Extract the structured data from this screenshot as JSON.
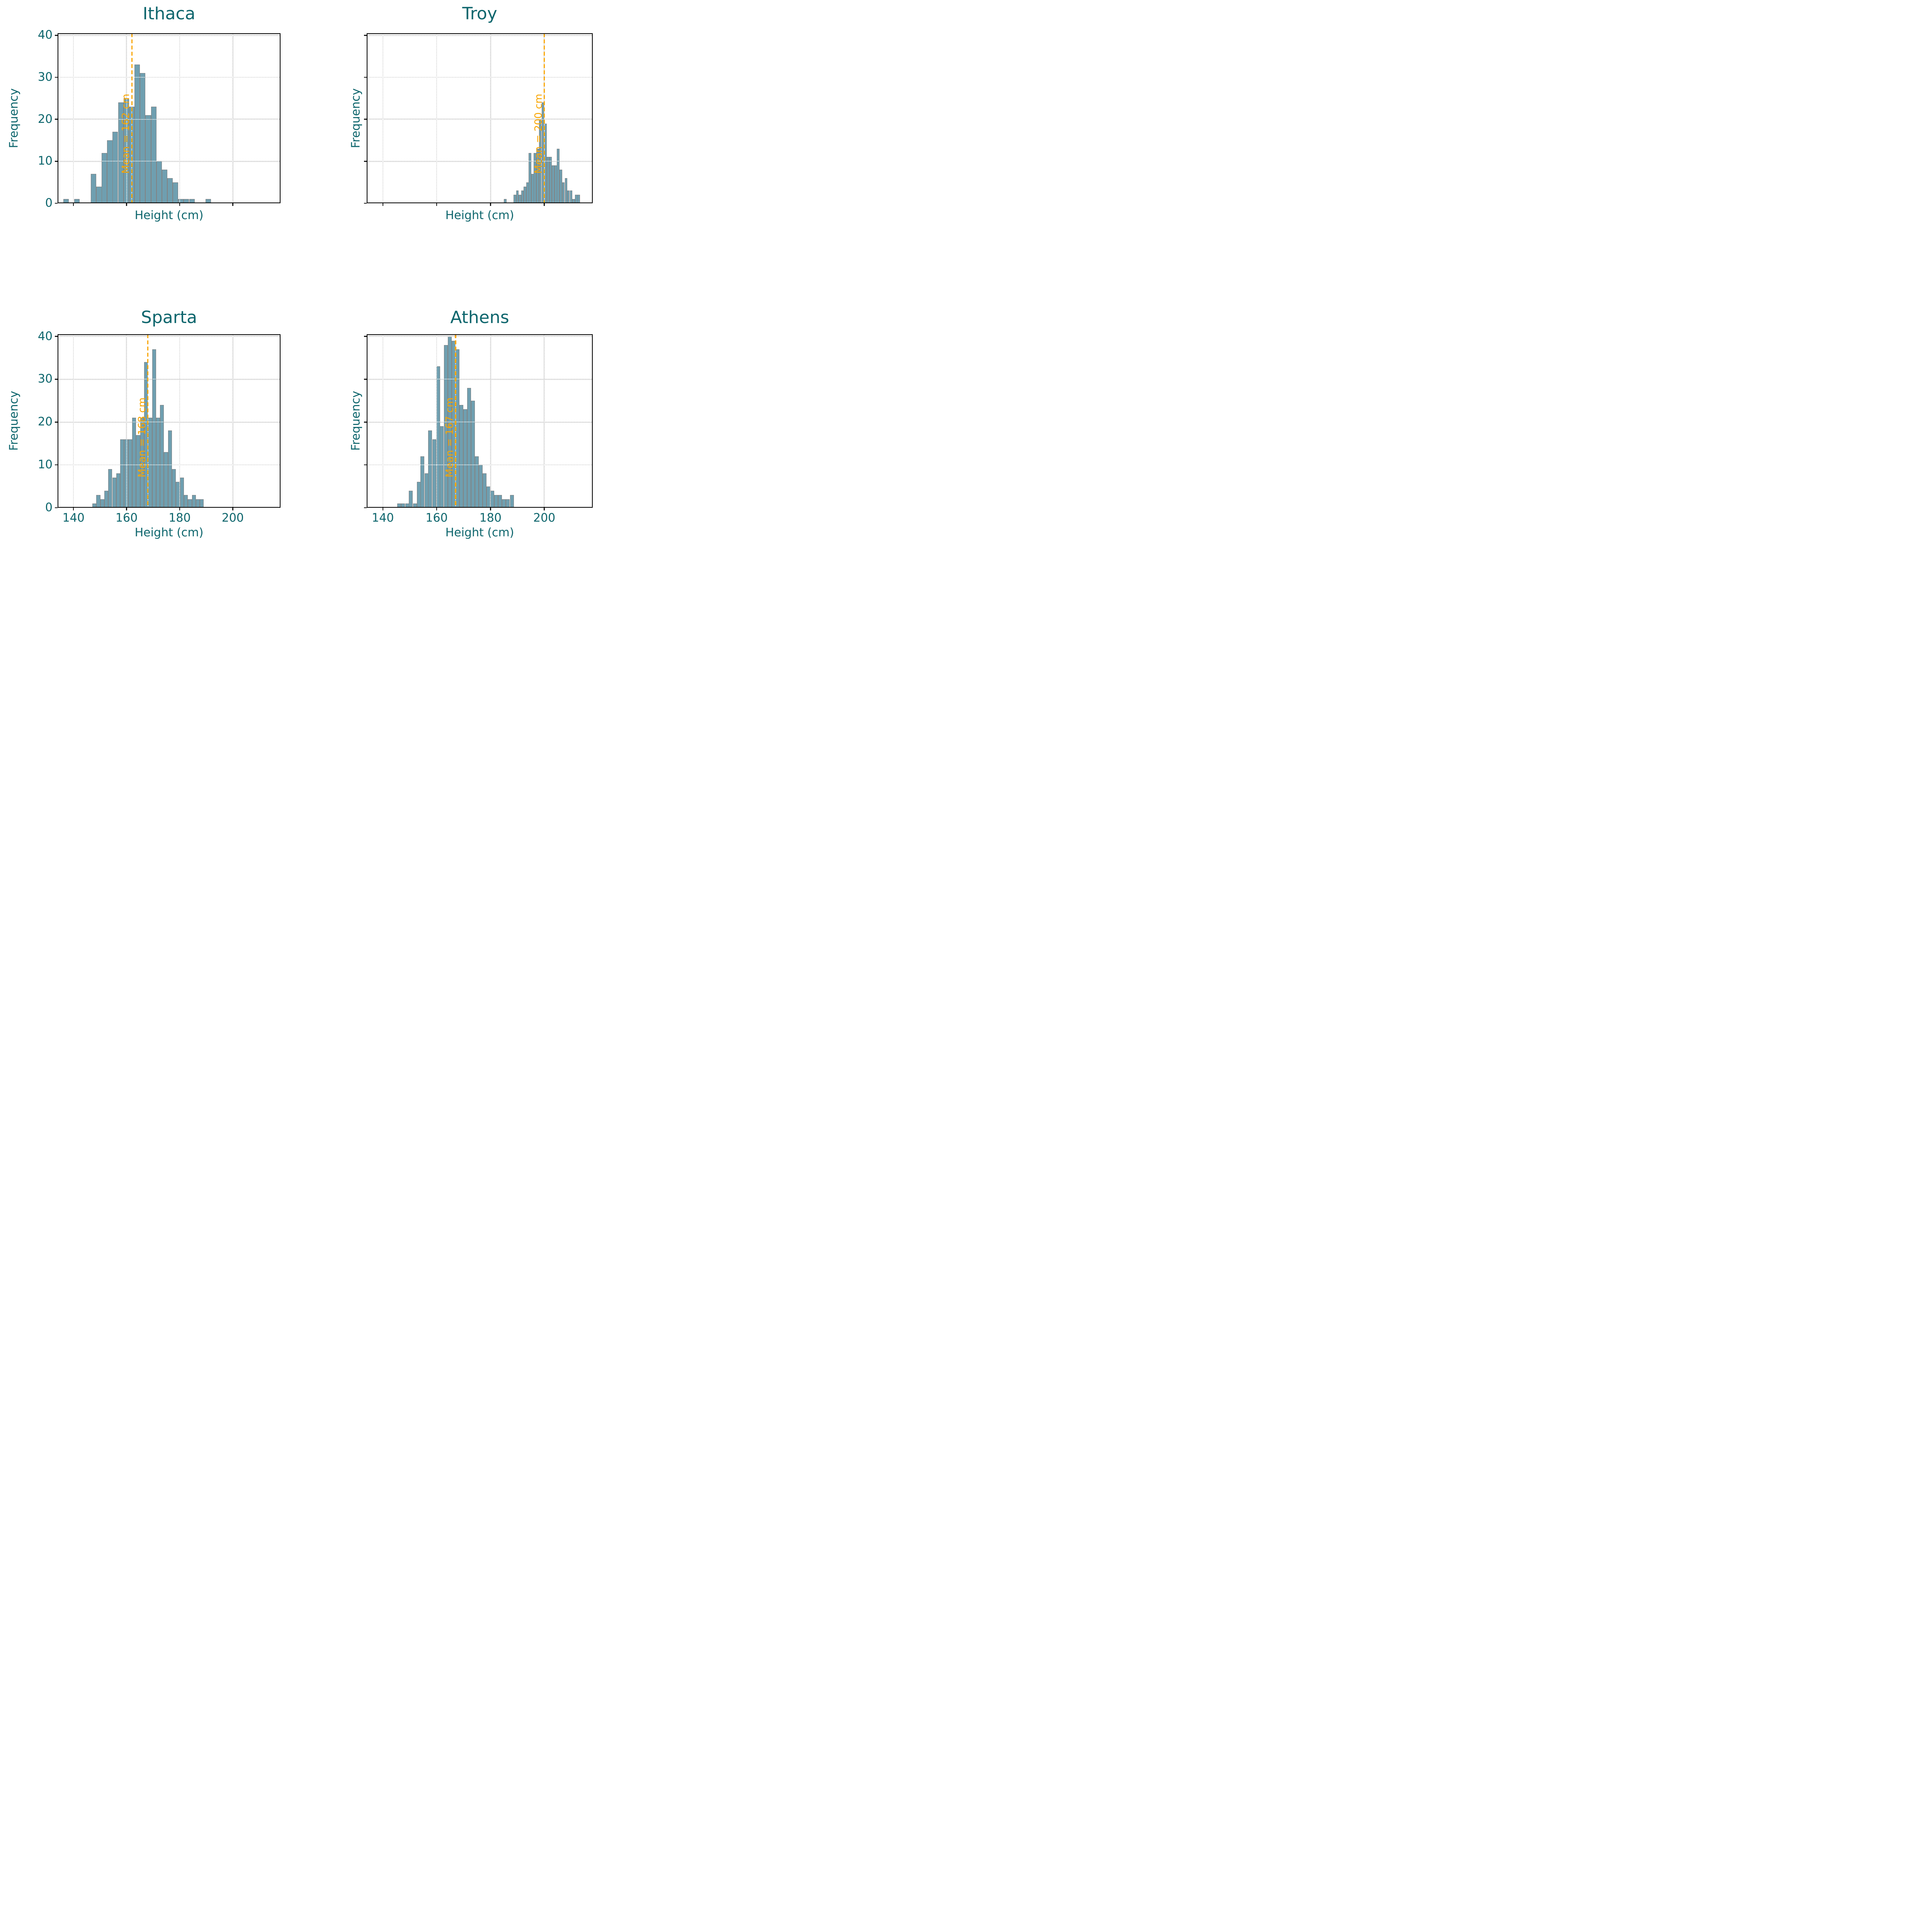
{
  "figure": {
    "background": "#ffffff"
  },
  "style": {
    "bar_fill": "#6f9fb0",
    "bar_edge": "#828282",
    "grid_color": "#d2d2d2",
    "grid_overlay_color": "#ffffff",
    "spine_color": "#000000",
    "text_color": "#0e666d",
    "mean_line_color": "#f9a602",
    "tick_mark_color": "#1a1a1a"
  },
  "axes": {
    "xlabel": "Height (cm)",
    "ylabel": "Frequency",
    "x_ticks": [
      140,
      160,
      180,
      200
    ],
    "y_ticks": [
      0,
      10,
      20,
      30,
      40
    ],
    "xlim": [
      134,
      218
    ],
    "ylim": [
      0,
      40.5
    ],
    "grid": "on",
    "x_tick_labels_rows": "bottom row only",
    "y_tick_labels_cols": "left column only"
  },
  "chart_data": [
    {
      "type": "bar",
      "subtype": "histogram",
      "title": "Ithaca",
      "xlabel": "Height (cm)",
      "ylabel": "Frequency",
      "mean": 162,
      "mean_label": "Mean = 162 cm",
      "bin_width": 2.07,
      "bins": [
        [
          136.2,
          1
        ],
        [
          140.3,
          1
        ],
        [
          146.5,
          7
        ],
        [
          148.6,
          4
        ],
        [
          150.6,
          12
        ],
        [
          152.7,
          15
        ],
        [
          154.7,
          17
        ],
        [
          156.8,
          24
        ],
        [
          158.9,
          25
        ],
        [
          160.9,
          23
        ],
        [
          163.0,
          33
        ],
        [
          165.0,
          31
        ],
        [
          167.1,
          21
        ],
        [
          169.2,
          23
        ],
        [
          171.2,
          10
        ],
        [
          173.3,
          8
        ],
        [
          175.3,
          6
        ],
        [
          177.4,
          5
        ],
        [
          179.4,
          1
        ],
        [
          181.5,
          1
        ],
        [
          183.6,
          1
        ],
        [
          189.7,
          1
        ]
      ]
    },
    {
      "type": "bar",
      "subtype": "histogram",
      "title": "Troy",
      "xlabel": "Height (cm)",
      "ylabel": "Frequency",
      "mean": 200,
      "mean_label": "Mean = 200 cm",
      "bin_width": 0.95,
      "bins": [
        [
          185.0,
          1
        ],
        [
          188.6,
          2
        ],
        [
          189.5,
          3
        ],
        [
          190.5,
          2
        ],
        [
          191.4,
          3
        ],
        [
          192.3,
          4
        ],
        [
          193.3,
          5
        ],
        [
          194.2,
          12
        ],
        [
          195.2,
          7
        ],
        [
          196.1,
          12
        ],
        [
          197.1,
          13
        ],
        [
          198.0,
          20
        ],
        [
          199.0,
          24
        ],
        [
          200.0,
          19
        ],
        [
          200.9,
          11
        ],
        [
          201.9,
          11
        ],
        [
          202.8,
          9
        ],
        [
          203.8,
          9
        ],
        [
          204.7,
          13
        ],
        [
          205.7,
          8
        ],
        [
          206.6,
          5
        ],
        [
          207.6,
          6
        ],
        [
          208.5,
          3
        ],
        [
          209.5,
          3
        ],
        [
          210.4,
          1
        ],
        [
          211.4,
          2
        ],
        [
          212.3,
          2
        ]
      ]
    },
    {
      "type": "bar",
      "subtype": "histogram",
      "title": "Sparta",
      "xlabel": "Height (cm)",
      "ylabel": "Frequency",
      "mean": 168,
      "mean_label": "Mean = 168 cm",
      "bin_width": 1.5,
      "bins": [
        [
          147.1,
          1
        ],
        [
          148.6,
          3
        ],
        [
          150.1,
          2
        ],
        [
          151.6,
          4
        ],
        [
          153.1,
          9
        ],
        [
          154.6,
          7
        ],
        [
          156.1,
          8
        ],
        [
          157.6,
          16
        ],
        [
          159.1,
          16
        ],
        [
          160.6,
          16
        ],
        [
          162.1,
          21
        ],
        [
          163.6,
          17
        ],
        [
          165.1,
          21
        ],
        [
          166.6,
          34
        ],
        [
          168.1,
          21
        ],
        [
          169.6,
          37
        ],
        [
          171.1,
          21
        ],
        [
          172.6,
          24
        ],
        [
          174.1,
          13
        ],
        [
          175.6,
          18
        ],
        [
          177.1,
          9
        ],
        [
          178.6,
          6
        ],
        [
          180.1,
          7
        ],
        [
          181.6,
          3
        ],
        [
          183.1,
          2
        ],
        [
          184.6,
          3
        ],
        [
          186.1,
          2
        ],
        [
          187.6,
          2
        ]
      ]
    },
    {
      "type": "bar",
      "subtype": "histogram",
      "title": "Athens",
      "xlabel": "Height (cm)",
      "ylabel": "Frequency",
      "mean": 167,
      "mean_label": "Mean = 167 cm",
      "bin_width": 1.44,
      "bins": [
        [
          145.4,
          1
        ],
        [
          146.8,
          1
        ],
        [
          148.3,
          1
        ],
        [
          149.7,
          4
        ],
        [
          151.2,
          1
        ],
        [
          152.6,
          6
        ],
        [
          154.0,
          12
        ],
        [
          155.5,
          8
        ],
        [
          156.9,
          18
        ],
        [
          158.4,
          16
        ],
        [
          159.8,
          33
        ],
        [
          161.2,
          19
        ],
        [
          162.7,
          38
        ],
        [
          164.1,
          40
        ],
        [
          165.6,
          39
        ],
        [
          167.0,
          37
        ],
        [
          168.4,
          24
        ],
        [
          169.9,
          23
        ],
        [
          171.3,
          28
        ],
        [
          172.8,
          25
        ],
        [
          174.2,
          12
        ],
        [
          175.7,
          10
        ],
        [
          177.1,
          8
        ],
        [
          178.5,
          5
        ],
        [
          180.0,
          4
        ],
        [
          181.4,
          3
        ],
        [
          182.8,
          3
        ],
        [
          184.3,
          2
        ],
        [
          185.7,
          2
        ],
        [
          187.2,
          3
        ]
      ]
    }
  ]
}
